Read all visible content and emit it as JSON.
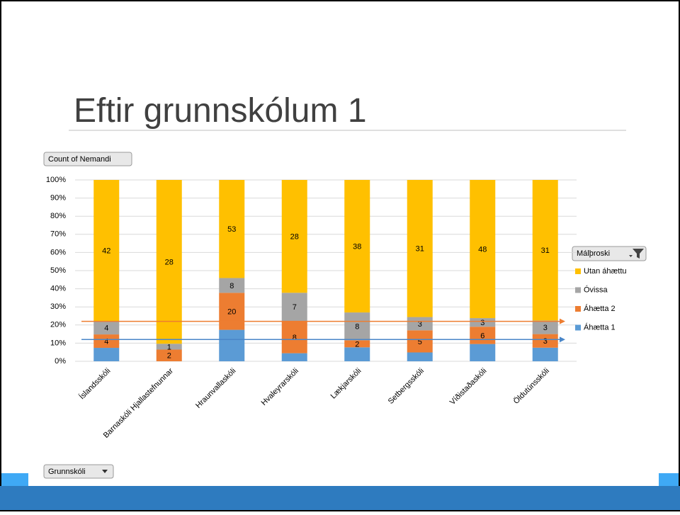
{
  "slide_title": "Eftir grunnskólum 1",
  "chart_data": {
    "type": "stacked_bar",
    "stacking": "percent",
    "value_field_button": "Count of Nemandi",
    "axis_field_button": "Grunnskóli",
    "legend_title": "Málþroski",
    "legend_position": "right",
    "grid": true,
    "categories": [
      "Íslandsskóli",
      "Barnaskóli Hjallastefnunnar",
      "Hraunvallaskóli",
      "Hvaleyrarskóli",
      "Lækjarskóli",
      "Setbergsskóli",
      "Víðistaðaskóli",
      "Öldutúnsskóli"
    ],
    "series": [
      {
        "name": "Áhætta 1",
        "color": "#5b9bd5",
        "data_labels": false,
        "values": [
          4,
          null,
          17,
          2,
          4,
          2,
          6,
          3
        ]
      },
      {
        "name": "Áhætta 2",
        "color": "#ed7d31",
        "data_labels": true,
        "values": [
          4,
          2,
          20,
          8,
          2,
          5,
          6,
          3
        ]
      },
      {
        "name": "Óvissa",
        "color": "#a5a5a5",
        "data_labels": true,
        "values": [
          4,
          1,
          8,
          7,
          8,
          3,
          3,
          3
        ]
      },
      {
        "name": "Utan áhættu",
        "color": "#ffc000",
        "data_labels": true,
        "values": [
          42,
          28,
          53,
          28,
          38,
          31,
          48,
          31
        ]
      }
    ],
    "ylim": [
      0,
      100
    ],
    "yticks": [
      {
        "value": 0,
        "label": "0%"
      },
      {
        "value": 10,
        "label": "10%"
      },
      {
        "value": 20,
        "label": "20%"
      },
      {
        "value": 30,
        "label": "30%"
      },
      {
        "value": 40,
        "label": "40%"
      },
      {
        "value": 50,
        "label": "50%"
      },
      {
        "value": 60,
        "label": "60%"
      },
      {
        "value": 70,
        "label": "70%"
      },
      {
        "value": 80,
        "label": "80%"
      },
      {
        "value": 90,
        "label": "90%"
      },
      {
        "value": 100,
        "label": "100%"
      }
    ],
    "reference_lines": [
      {
        "value": 22,
        "color": "#ed7d31"
      },
      {
        "value": 12,
        "color": "#4a86c8"
      }
    ]
  }
}
